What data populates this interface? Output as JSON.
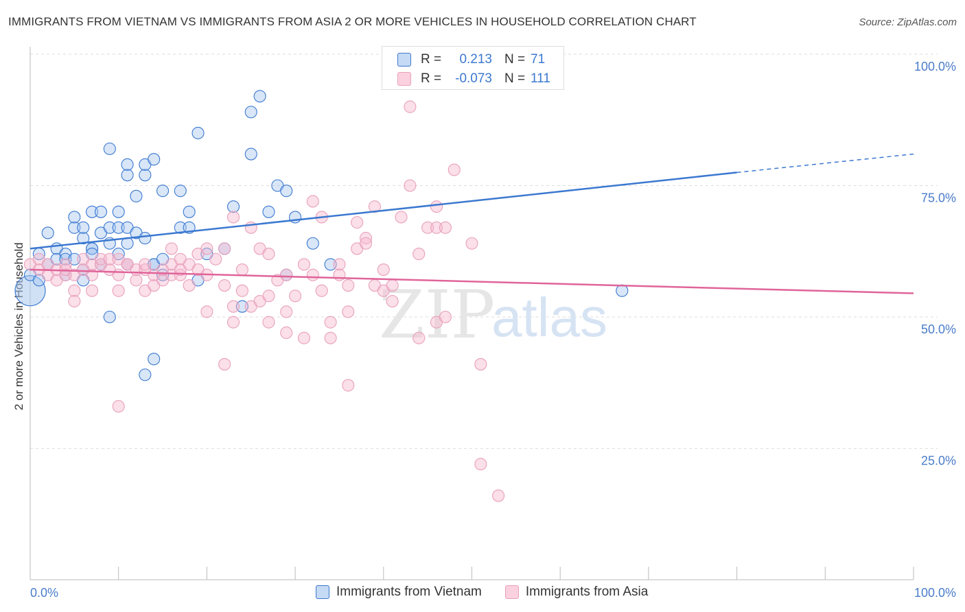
{
  "title": "IMMIGRANTS FROM VIETNAM VS IMMIGRANTS FROM ASIA 2 OR MORE VEHICLES IN HOUSEHOLD CORRELATION CHART",
  "source": "Source: ZipAtlas.com",
  "watermark": {
    "zip": "ZIP",
    "atlas": "atlas"
  },
  "colors": {
    "blue": "#3b78d0",
    "blue_fill": "#a9c8ef",
    "pink": "#e0649a",
    "pink_fill": "#f6b9cf",
    "grid": "#dddddd",
    "tick_text": "#4a7cc9"
  },
  "stats_box": {
    "rows": [
      {
        "r_label": "R =",
        "r_value": "0.213",
        "n_label": "N =",
        "n_value": "71"
      },
      {
        "r_label": "R =",
        "r_value": "-0.073",
        "n_label": "N =",
        "n_value": "111"
      }
    ]
  },
  "legend": [
    {
      "label": "Immigrants from Vietnam"
    },
    {
      "label": "Immigrants from Asia"
    }
  ],
  "chart_data": {
    "type": "scatter",
    "title": "IMMIGRANTS FROM VIETNAM VS IMMIGRANTS FROM ASIA 2 OR MORE VEHICLES IN HOUSEHOLD CORRELATION CHART",
    "xlabel": "",
    "ylabel": "2 or more Vehicles in Household",
    "xlim": [
      0,
      100
    ],
    "ylim": [
      0,
      100
    ],
    "x_tick_labels": [
      "0.0%",
      "100.0%"
    ],
    "y_ticks": [
      25,
      50,
      75,
      100
    ],
    "y_tick_labels": [
      "25.0%",
      "50.0%",
      "75.0%",
      "100.0%"
    ],
    "grid": true,
    "legend_position": "bottom",
    "series": [
      {
        "name": "Immigrants from Vietnam",
        "color": "#3b78d0",
        "trend": {
          "x": [
            0,
            80
          ],
          "y": [
            63,
            77.5
          ],
          "dashed_to": [
            100,
            81
          ]
        },
        "points": [
          [
            0,
            55
          ],
          [
            0,
            58
          ],
          [
            1,
            57
          ],
          [
            1,
            62
          ],
          [
            2,
            66
          ],
          [
            2,
            60
          ],
          [
            3,
            63
          ],
          [
            3,
            61
          ],
          [
            4,
            62
          ],
          [
            4,
            58
          ],
          [
            4,
            61
          ],
          [
            5,
            67
          ],
          [
            5,
            69
          ],
          [
            5,
            61
          ],
          [
            6,
            65
          ],
          [
            6,
            67
          ],
          [
            6,
            59
          ],
          [
            6,
            57
          ],
          [
            7,
            63
          ],
          [
            7,
            63
          ],
          [
            7,
            70
          ],
          [
            7,
            62
          ],
          [
            8,
            66
          ],
          [
            8,
            70
          ],
          [
            8,
            60
          ],
          [
            9,
            67
          ],
          [
            9,
            64
          ],
          [
            9,
            50
          ],
          [
            9,
            82
          ],
          [
            10,
            70
          ],
          [
            10,
            62
          ],
          [
            10,
            67
          ],
          [
            11,
            64
          ],
          [
            11,
            67
          ],
          [
            11,
            77
          ],
          [
            11,
            79
          ],
          [
            11,
            60
          ],
          [
            12,
            73
          ],
          [
            12,
            66
          ],
          [
            13,
            39
          ],
          [
            13,
            77
          ],
          [
            13,
            79
          ],
          [
            13,
            65
          ],
          [
            14,
            60
          ],
          [
            14,
            60
          ],
          [
            14,
            80
          ],
          [
            14,
            42
          ],
          [
            15,
            61
          ],
          [
            15,
            58
          ],
          [
            15,
            74
          ],
          [
            17,
            74
          ],
          [
            17,
            67
          ],
          [
            18,
            70
          ],
          [
            18,
            67
          ],
          [
            19,
            57
          ],
          [
            19,
            85
          ],
          [
            20,
            62
          ],
          [
            22,
            63
          ],
          [
            23,
            71
          ],
          [
            24,
            52
          ],
          [
            25,
            81
          ],
          [
            25,
            89
          ],
          [
            26,
            92
          ],
          [
            27,
            70
          ],
          [
            28,
            75
          ],
          [
            29,
            74
          ],
          [
            29,
            58
          ],
          [
            30,
            69
          ],
          [
            32,
            64
          ],
          [
            34,
            60
          ],
          [
            67,
            55
          ]
        ]
      },
      {
        "name": "Immigrants from Asia",
        "color": "#e0649a",
        "trend": {
          "x": [
            0,
            100
          ],
          "y": [
            59,
            54.5
          ]
        },
        "points": [
          [
            0,
            60
          ],
          [
            1,
            59
          ],
          [
            1,
            61
          ],
          [
            2,
            58
          ],
          [
            2,
            60
          ],
          [
            3,
            57
          ],
          [
            3,
            59
          ],
          [
            4,
            60
          ],
          [
            4,
            58
          ],
          [
            4,
            59
          ],
          [
            5,
            58
          ],
          [
            5,
            55
          ],
          [
            5,
            53
          ],
          [
            6,
            59
          ],
          [
            6,
            61
          ],
          [
            7,
            58
          ],
          [
            7,
            55
          ],
          [
            7,
            60
          ],
          [
            8,
            60
          ],
          [
            8,
            61
          ],
          [
            9,
            59
          ],
          [
            9,
            61
          ],
          [
            10,
            58
          ],
          [
            10,
            55
          ],
          [
            10,
            61
          ],
          [
            10,
            33
          ],
          [
            11,
            60
          ],
          [
            11,
            60
          ],
          [
            12,
            57
          ],
          [
            12,
            59
          ],
          [
            13,
            59
          ],
          [
            13,
            60
          ],
          [
            13,
            55
          ],
          [
            14,
            56
          ],
          [
            14,
            58
          ],
          [
            15,
            57
          ],
          [
            15,
            59
          ],
          [
            16,
            63
          ],
          [
            16,
            60
          ],
          [
            16,
            58
          ],
          [
            17,
            61
          ],
          [
            17,
            58
          ],
          [
            17,
            59
          ],
          [
            18,
            60
          ],
          [
            18,
            56
          ],
          [
            19,
            59
          ],
          [
            19,
            62
          ],
          [
            20,
            51
          ],
          [
            20,
            58
          ],
          [
            20,
            63
          ],
          [
            21,
            61
          ],
          [
            22,
            41
          ],
          [
            22,
            63
          ],
          [
            22,
            56
          ],
          [
            23,
            49
          ],
          [
            23,
            52
          ],
          [
            23,
            69
          ],
          [
            24,
            59
          ],
          [
            24,
            55
          ],
          [
            25,
            52
          ],
          [
            25,
            67
          ],
          [
            26,
            53
          ],
          [
            26,
            63
          ],
          [
            27,
            49
          ],
          [
            27,
            54
          ],
          [
            27,
            62
          ],
          [
            28,
            57
          ],
          [
            29,
            47
          ],
          [
            29,
            58
          ],
          [
            29,
            51
          ],
          [
            30,
            54
          ],
          [
            31,
            60
          ],
          [
            31,
            46
          ],
          [
            32,
            58
          ],
          [
            32,
            72
          ],
          [
            33,
            55
          ],
          [
            33,
            69
          ],
          [
            34,
            49
          ],
          [
            34,
            46
          ],
          [
            35,
            60
          ],
          [
            35,
            58
          ],
          [
            36,
            51
          ],
          [
            36,
            37
          ],
          [
            36,
            56
          ],
          [
            37,
            68
          ],
          [
            37,
            63
          ],
          [
            38,
            65
          ],
          [
            38,
            64
          ],
          [
            39,
            56
          ],
          [
            39,
            71
          ],
          [
            40,
            55
          ],
          [
            40,
            59
          ],
          [
            41,
            53
          ],
          [
            41,
            56
          ],
          [
            42,
            69
          ],
          [
            43,
            75
          ],
          [
            43,
            90
          ],
          [
            44,
            62
          ],
          [
            44,
            46
          ],
          [
            45,
            67
          ],
          [
            46,
            67
          ],
          [
            46,
            49
          ],
          [
            46,
            71
          ],
          [
            47,
            50
          ],
          [
            47,
            67
          ],
          [
            48,
            78
          ],
          [
            50,
            64
          ],
          [
            51,
            41
          ],
          [
            51,
            22
          ],
          [
            52,
            100
          ],
          [
            53,
            16
          ]
        ]
      }
    ]
  }
}
